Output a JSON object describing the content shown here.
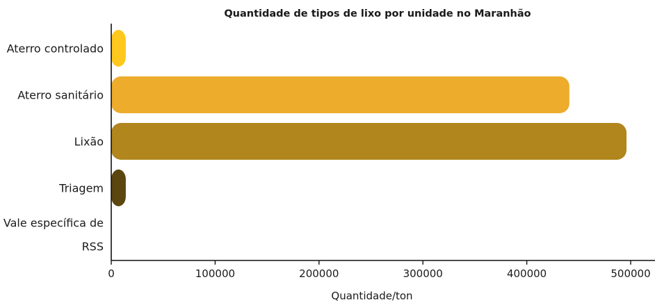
{
  "chart_data": {
    "type": "bar",
    "orientation": "horizontal",
    "title": "Quantidade de tipos de lixo por unidade no Maranhão",
    "xlabel": "Quantidade/ton",
    "ylabel": "",
    "categories": [
      [
        "Aterro controlado"
      ],
      [
        "Aterro sanitário"
      ],
      [
        "Lixão"
      ],
      [
        "Triagem"
      ],
      [
        "Vale específica de",
        "RSS"
      ]
    ],
    "values": [
      14000,
      441000,
      496000,
      14000,
      0
    ],
    "colors": [
      "#ffc81e",
      "#edac2c",
      "#b0861d",
      "#5c4610",
      "#3a2c08"
    ],
    "xlim": [
      0,
      520000
    ],
    "xticks": [
      0,
      100000,
      200000,
      300000,
      400000,
      500000
    ],
    "xtick_labels": [
      "0",
      "100000",
      "200000",
      "300000",
      "400000",
      "500000"
    ],
    "grid": false,
    "legend": "none"
  }
}
